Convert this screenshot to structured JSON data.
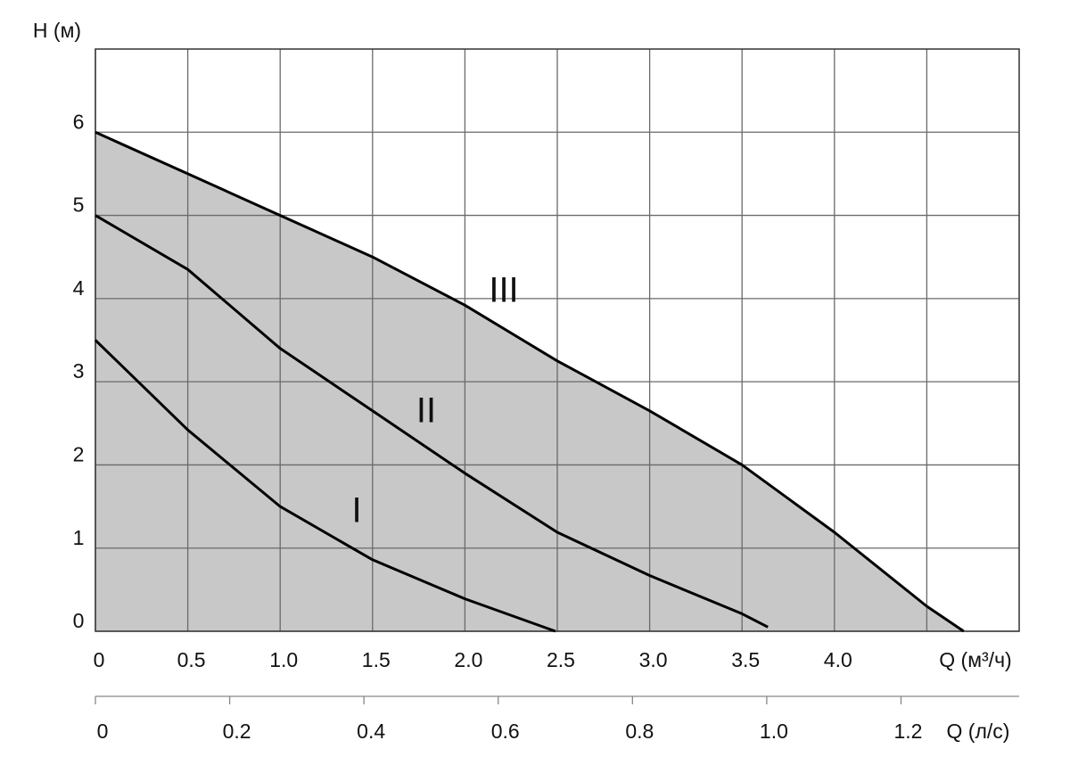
{
  "chart_data": {
    "type": "line",
    "y_label": "H (м)",
    "x_label": "Q (м³/ч)",
    "x2_label": "Q (л/с)",
    "xlim": [
      0,
      5
    ],
    "ylim": [
      0,
      7
    ],
    "x2lim": [
      0,
      1.376
    ],
    "yticks": [
      0,
      1,
      2,
      3,
      4,
      5,
      6
    ],
    "xticks": [
      0,
      0.5,
      {
        "value": 1,
        "label": "1.0"
      },
      1.5,
      {
        "value": 2,
        "label": "2.0"
      },
      2.5,
      {
        "value": 3,
        "label": "3.0"
      },
      3.5,
      {
        "value": 4,
        "label": "4.0"
      },
      {
        "value": 4.5,
        "label": null
      }
    ],
    "x2ticks": [
      0,
      0.2,
      0.4,
      0.6,
      0.8,
      {
        "value": 1,
        "label": "1.0"
      },
      1.2
    ],
    "grid": true,
    "series": [
      {
        "name": "I",
        "color": "#000000",
        "x": [
          0,
          0.5,
          1.0,
          1.5,
          2.0,
          2.49
        ],
        "values": [
          3.5,
          2.42,
          1.5,
          0.86,
          0.39,
          0
        ]
      },
      {
        "name": "II",
        "color": "#000000",
        "x": [
          0,
          0.5,
          1.0,
          1.5,
          2.0,
          2.5,
          3.0,
          3.5,
          3.64
        ],
        "values": [
          5,
          4.35,
          3.4,
          2.65,
          1.9,
          1.19,
          0.67,
          0.21,
          0.05
        ]
      },
      {
        "name": "III",
        "color": "#000000",
        "fill": "#c8c8c8",
        "x": [
          0,
          0.5,
          1.0,
          1.5,
          2.0,
          2.5,
          3.0,
          3.5,
          4.0,
          4.5,
          4.7
        ],
        "values": [
          6,
          5.5,
          5.0,
          4.5,
          3.92,
          3.25,
          2.65,
          2.0,
          1.19,
          0.3,
          0
        ]
      }
    ]
  }
}
